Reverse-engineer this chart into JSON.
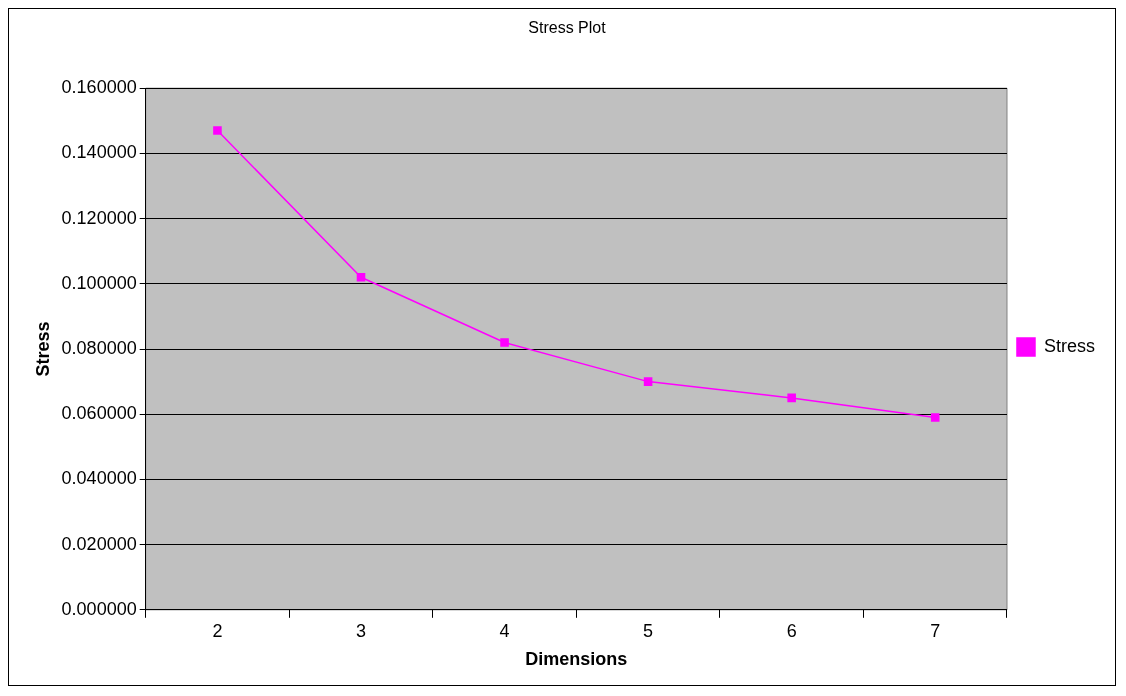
{
  "chart_data": {
    "type": "line",
    "title": "Stress Plot",
    "xlabel": "Dimensions",
    "ylabel": "Stress",
    "categories": [
      "2",
      "3",
      "4",
      "5",
      "6",
      "7"
    ],
    "series": [
      {
        "name": "Stress",
        "color": "#ff00ff",
        "values": [
          0.147,
          0.102,
          0.082,
          0.07,
          0.065,
          0.059
        ]
      }
    ],
    "ylim": [
      0,
      0.16
    ],
    "yticks": [
      {
        "value": 0,
        "label": "0.000000"
      },
      {
        "value": 0.02,
        "label": "0.020000"
      },
      {
        "value": 0.04,
        "label": "0.040000"
      },
      {
        "value": 0.06,
        "label": "0.060000"
      },
      {
        "value": 0.08,
        "label": "0.080000"
      },
      {
        "value": 0.1,
        "label": "0.100000"
      },
      {
        "value": 0.12,
        "label": "0.120000"
      },
      {
        "value": 0.14,
        "label": "0.140000"
      },
      {
        "value": 0.16,
        "label": "0.160000"
      }
    ],
    "grid": "y",
    "legend": "right",
    "marker": "square",
    "line_style": "solid"
  }
}
